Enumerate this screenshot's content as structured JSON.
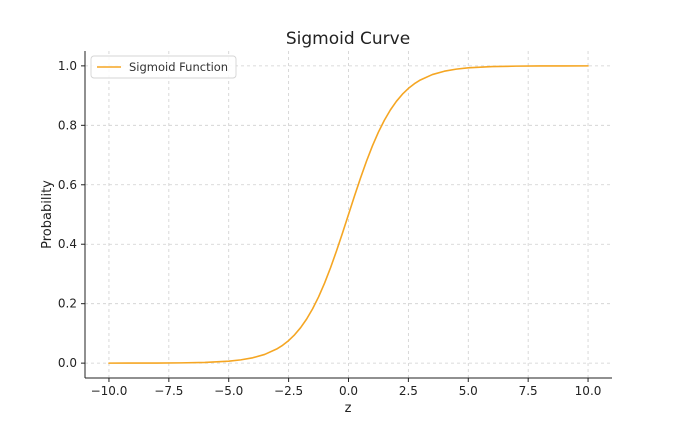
{
  "chart_data": {
    "type": "line",
    "title": "Sigmoid Curve",
    "xlabel": "z",
    "ylabel": "Probability",
    "xlim": [
      -11,
      11
    ],
    "ylim": [
      -0.05,
      1.05
    ],
    "xticks": [
      -10,
      -7.5,
      -5,
      -2.5,
      0,
      2.5,
      5,
      7.5,
      10
    ],
    "xtick_labels": [
      "−10.0",
      "−7.5",
      "−5.0",
      "−2.5",
      "0.0",
      "2.5",
      "5.0",
      "7.5",
      "10.0"
    ],
    "yticks": [
      0,
      0.2,
      0.4,
      0.6,
      0.8,
      1.0
    ],
    "ytick_labels": [
      "0.0",
      "0.2",
      "0.4",
      "0.6",
      "0.8",
      "1.0"
    ],
    "grid": true,
    "legend_position": "top-left",
    "series": [
      {
        "name": "Sigmoid Function",
        "color": "#f5a623",
        "x": [
          -10,
          -9,
          -8,
          -7,
          -6,
          -5,
          -4.5,
          -4,
          -3.5,
          -3,
          -2.75,
          -2.5,
          -2.25,
          -2,
          -1.75,
          -1.5,
          -1.25,
          -1,
          -0.75,
          -0.5,
          -0.25,
          0,
          0.25,
          0.5,
          0.75,
          1,
          1.25,
          1.5,
          1.75,
          2,
          2.25,
          2.5,
          2.75,
          3,
          3.5,
          4,
          4.5,
          5,
          6,
          7,
          8,
          9,
          10
        ],
        "y": [
          5e-05,
          0.00012,
          0.00034,
          0.00091,
          0.00247,
          0.00669,
          0.01099,
          0.01799,
          0.02931,
          0.04743,
          0.06,
          0.07586,
          0.09534,
          0.1192,
          0.14805,
          0.18243,
          0.2227,
          0.26894,
          0.32082,
          0.37754,
          0.43782,
          0.5,
          0.56218,
          0.62246,
          0.67918,
          0.73106,
          0.7773,
          0.81757,
          0.85195,
          0.8808,
          0.90466,
          0.92414,
          0.94,
          0.95257,
          0.97069,
          0.98201,
          0.98901,
          0.99331,
          0.99753,
          0.99909,
          0.99966,
          0.99988,
          0.99995
        ]
      }
    ]
  }
}
